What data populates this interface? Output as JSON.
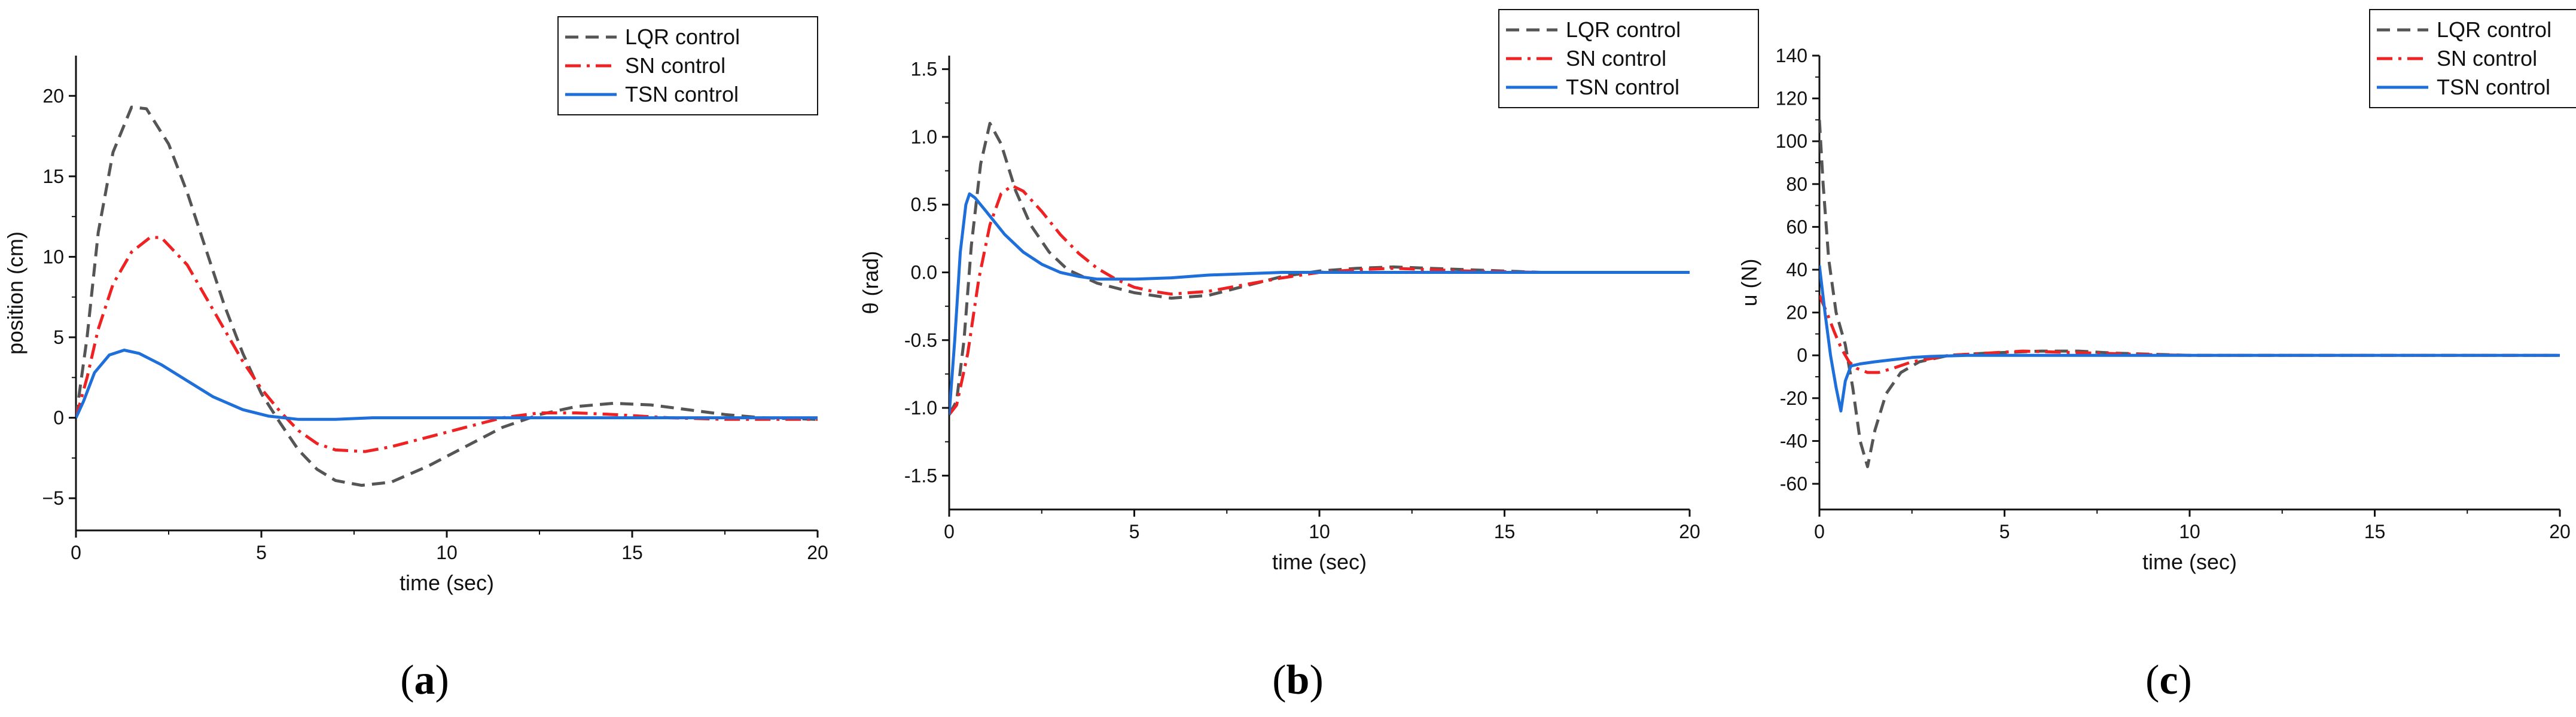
{
  "panels": [
    {
      "label_letter": "a",
      "type": "line",
      "xlabel": "time (sec)",
      "ylabel": "position (cm)",
      "xlim": [
        0,
        20
      ],
      "ylim": [
        -7,
        22.5
      ],
      "xticks": [
        0,
        5,
        10,
        15,
        20
      ],
      "yticks": [
        -5,
        0,
        5,
        10,
        15,
        20
      ],
      "ytick_labels": [
        "−5",
        "0",
        "5",
        "10",
        "15",
        "20"
      ],
      "series": [
        {
          "name": "LQR control",
          "color": "#555555",
          "dash": "dash",
          "points": [
            [
              0,
              0
            ],
            [
              0.3,
              5
            ],
            [
              0.6,
              11.5
            ],
            [
              1,
              16.5
            ],
            [
              1.5,
              19.3
            ],
            [
              1.9,
              19.2
            ],
            [
              2.5,
              17
            ],
            [
              3,
              14
            ],
            [
              3.5,
              10.5
            ],
            [
              4,
              7
            ],
            [
              4.5,
              4
            ],
            [
              5,
              1.5
            ],
            [
              5.5,
              -0.3
            ],
            [
              6,
              -2
            ],
            [
              6.5,
              -3.2
            ],
            [
              7,
              -3.9
            ],
            [
              7.7,
              -4.2
            ],
            [
              8.5,
              -4
            ],
            [
              9.5,
              -3
            ],
            [
              10.5,
              -1.8
            ],
            [
              11.5,
              -0.6
            ],
            [
              12.5,
              0.2
            ],
            [
              13.5,
              0.7
            ],
            [
              14.5,
              0.9
            ],
            [
              15.5,
              0.8
            ],
            [
              16.5,
              0.5
            ],
            [
              17.5,
              0.2
            ],
            [
              18.5,
              0
            ],
            [
              20,
              -0.1
            ]
          ]
        },
        {
          "name": "SN control",
          "color": "#ee2222",
          "dash": "dashdot",
          "points": [
            [
              0,
              0
            ],
            [
              0.3,
              2.5
            ],
            [
              0.6,
              5.5
            ],
            [
              1,
              8.3
            ],
            [
              1.5,
              10.3
            ],
            [
              2,
              11.2
            ],
            [
              2.3,
              11.2
            ],
            [
              3,
              9.5
            ],
            [
              3.5,
              7.5
            ],
            [
              4,
              5.5
            ],
            [
              4.5,
              3.5
            ],
            [
              5,
              1.8
            ],
            [
              5.5,
              0.4
            ],
            [
              6,
              -0.8
            ],
            [
              6.5,
              -1.6
            ],
            [
              7,
              -2
            ],
            [
              7.8,
              -2.1
            ],
            [
              8.5,
              -1.8
            ],
            [
              9.5,
              -1.2
            ],
            [
              10.5,
              -0.6
            ],
            [
              11.5,
              0
            ],
            [
              12.5,
              0.3
            ],
            [
              13.5,
              0.3
            ],
            [
              14.5,
              0.2
            ],
            [
              16,
              0
            ],
            [
              17.5,
              -0.1
            ],
            [
              20,
              -0.1
            ]
          ]
        },
        {
          "name": "TSN control",
          "color": "#1e6fd9",
          "dash": "solid",
          "points": [
            [
              0,
              0
            ],
            [
              0.2,
              1
            ],
            [
              0.5,
              2.8
            ],
            [
              0.9,
              3.9
            ],
            [
              1.3,
              4.2
            ],
            [
              1.7,
              4
            ],
            [
              2.3,
              3.3
            ],
            [
              3,
              2.3
            ],
            [
              3.7,
              1.3
            ],
            [
              4.5,
              0.5
            ],
            [
              5.2,
              0.1
            ],
            [
              6,
              -0.1
            ],
            [
              7,
              -0.1
            ],
            [
              8,
              0
            ],
            [
              10,
              0
            ],
            [
              15,
              0
            ],
            [
              20,
              0
            ]
          ]
        }
      ],
      "legend": [
        "LQR control",
        "SN control",
        "TSN control"
      ]
    },
    {
      "label_letter": "b",
      "type": "line",
      "xlabel": "time (sec)",
      "ylabel": "θ (rad)",
      "xlim": [
        0,
        20
      ],
      "ylim": [
        -1.75,
        1.6
      ],
      "xticks": [
        0,
        5,
        10,
        15,
        20
      ],
      "yticks": [
        -1.5,
        -1.0,
        -0.5,
        0.0,
        0.5,
        1.0,
        1.5
      ],
      "ytick_labels": [
        "-1.5",
        "-1.0",
        "-0.5",
        "0.0",
        "0.5",
        "1.0",
        "1.5"
      ],
      "series": [
        {
          "name": "LQR control",
          "color": "#555555",
          "dash": "dash",
          "points": [
            [
              0,
              -1.05
            ],
            [
              0.2,
              -0.95
            ],
            [
              0.4,
              -0.5
            ],
            [
              0.6,
              0.2
            ],
            [
              0.85,
              0.8
            ],
            [
              1.1,
              1.1
            ],
            [
              1.4,
              0.95
            ],
            [
              1.8,
              0.6
            ],
            [
              2.2,
              0.35
            ],
            [
              2.7,
              0.15
            ],
            [
              3.2,
              0.02
            ],
            [
              4,
              -0.08
            ],
            [
              5,
              -0.15
            ],
            [
              6,
              -0.19
            ],
            [
              7,
              -0.17
            ],
            [
              8,
              -0.1
            ],
            [
              9,
              -0.03
            ],
            [
              10,
              0.01
            ],
            [
              11,
              0.03
            ],
            [
              12,
              0.04
            ],
            [
              13,
              0.03
            ],
            [
              14,
              0.02
            ],
            [
              16,
              0
            ],
            [
              20,
              0
            ]
          ]
        },
        {
          "name": "SN control",
          "color": "#ee2222",
          "dash": "dashdot",
          "points": [
            [
              0,
              -1.05
            ],
            [
              0.2,
              -0.98
            ],
            [
              0.5,
              -0.6
            ],
            [
              0.8,
              -0.05
            ],
            [
              1.1,
              0.35
            ],
            [
              1.4,
              0.58
            ],
            [
              1.7,
              0.64
            ],
            [
              2,
              0.6
            ],
            [
              2.5,
              0.45
            ],
            [
              3,
              0.28
            ],
            [
              3.5,
              0.14
            ],
            [
              4,
              0.03
            ],
            [
              4.5,
              -0.05
            ],
            [
              5,
              -0.11
            ],
            [
              5.5,
              -0.14
            ],
            [
              6,
              -0.16
            ],
            [
              7,
              -0.14
            ],
            [
              8,
              -0.09
            ],
            [
              9,
              -0.04
            ],
            [
              10,
              0
            ],
            [
              11,
              0.02
            ],
            [
              12,
              0.03
            ],
            [
              13,
              0.02
            ],
            [
              14,
              0.01
            ],
            [
              16,
              0
            ],
            [
              20,
              0
            ]
          ]
        },
        {
          "name": "TSN control",
          "color": "#1e6fd9",
          "dash": "solid",
          "points": [
            [
              0,
              -1.05
            ],
            [
              0.15,
              -0.5
            ],
            [
              0.3,
              0.15
            ],
            [
              0.45,
              0.5
            ],
            [
              0.55,
              0.58
            ],
            [
              0.7,
              0.55
            ],
            [
              1,
              0.45
            ],
            [
              1.5,
              0.28
            ],
            [
              2,
              0.15
            ],
            [
              2.5,
              0.06
            ],
            [
              3,
              0
            ],
            [
              3.5,
              -0.03
            ],
            [
              4,
              -0.05
            ],
            [
              5,
              -0.05
            ],
            [
              6,
              -0.04
            ],
            [
              7,
              -0.02
            ],
            [
              8,
              -0.01
            ],
            [
              9,
              0
            ],
            [
              20,
              0
            ]
          ]
        }
      ],
      "legend": [
        "LQR control",
        "SN control",
        "TSN control"
      ]
    },
    {
      "label_letter": "c",
      "type": "line",
      "xlabel": "time (sec)",
      "ylabel": "u (N)",
      "xlim": [
        0,
        20
      ],
      "ylim": [
        -72,
        140
      ],
      "xticks": [
        0,
        5,
        10,
        15,
        20
      ],
      "yticks": [
        -60,
        -40,
        -20,
        0,
        20,
        40,
        60,
        80,
        100,
        120,
        140
      ],
      "ytick_labels": [
        "-60",
        "-40",
        "-20",
        "0",
        "20",
        "40",
        "60",
        "80",
        "100",
        "120",
        "140"
      ],
      "series": [
        {
          "name": "LQR control",
          "color": "#555555",
          "dash": "dash",
          "points": [
            [
              0,
              110
            ],
            [
              0.1,
              80
            ],
            [
              0.25,
              45
            ],
            [
              0.45,
              20
            ],
            [
              0.7,
              5
            ],
            [
              0.9,
              -15
            ],
            [
              1.1,
              -40
            ],
            [
              1.3,
              -52
            ],
            [
              1.5,
              -35
            ],
            [
              1.8,
              -18
            ],
            [
              2.2,
              -8
            ],
            [
              2.7,
              -3
            ],
            [
              3.5,
              0
            ],
            [
              4.5,
              1
            ],
            [
              6,
              2
            ],
            [
              7,
              2
            ],
            [
              8,
              1
            ],
            [
              9,
              0.5
            ],
            [
              10,
              0
            ],
            [
              20,
              0
            ]
          ]
        },
        {
          "name": "SN control",
          "color": "#ee2222",
          "dash": "dashdot",
          "points": [
            [
              0,
              28
            ],
            [
              0.2,
              20
            ],
            [
              0.4,
              11
            ],
            [
              0.6,
              3
            ],
            [
              0.8,
              -3
            ],
            [
              1,
              -6
            ],
            [
              1.3,
              -8
            ],
            [
              1.6,
              -8
            ],
            [
              2,
              -6
            ],
            [
              2.5,
              -3
            ],
            [
              3,
              -1.5
            ],
            [
              3.5,
              0
            ],
            [
              4.5,
              1
            ],
            [
              5.5,
              2
            ],
            [
              6.5,
              1.5
            ],
            [
              7.5,
              1
            ],
            [
              9,
              0.3
            ],
            [
              10,
              0
            ],
            [
              20,
              0
            ]
          ]
        },
        {
          "name": "TSN control",
          "color": "#1e6fd9",
          "dash": "solid",
          "points": [
            [
              0,
              42
            ],
            [
              0.15,
              20
            ],
            [
              0.3,
              0
            ],
            [
              0.45,
              -15
            ],
            [
              0.58,
              -26
            ],
            [
              0.7,
              -12
            ],
            [
              0.85,
              -5
            ],
            [
              1.1,
              -4
            ],
            [
              1.5,
              -3
            ],
            [
              2,
              -2
            ],
            [
              2.5,
              -1
            ],
            [
              3,
              -0.5
            ],
            [
              4,
              0
            ],
            [
              20,
              0
            ]
          ]
        }
      ],
      "legend": [
        "LQR control",
        "SN control",
        "TSN control"
      ]
    }
  ]
}
